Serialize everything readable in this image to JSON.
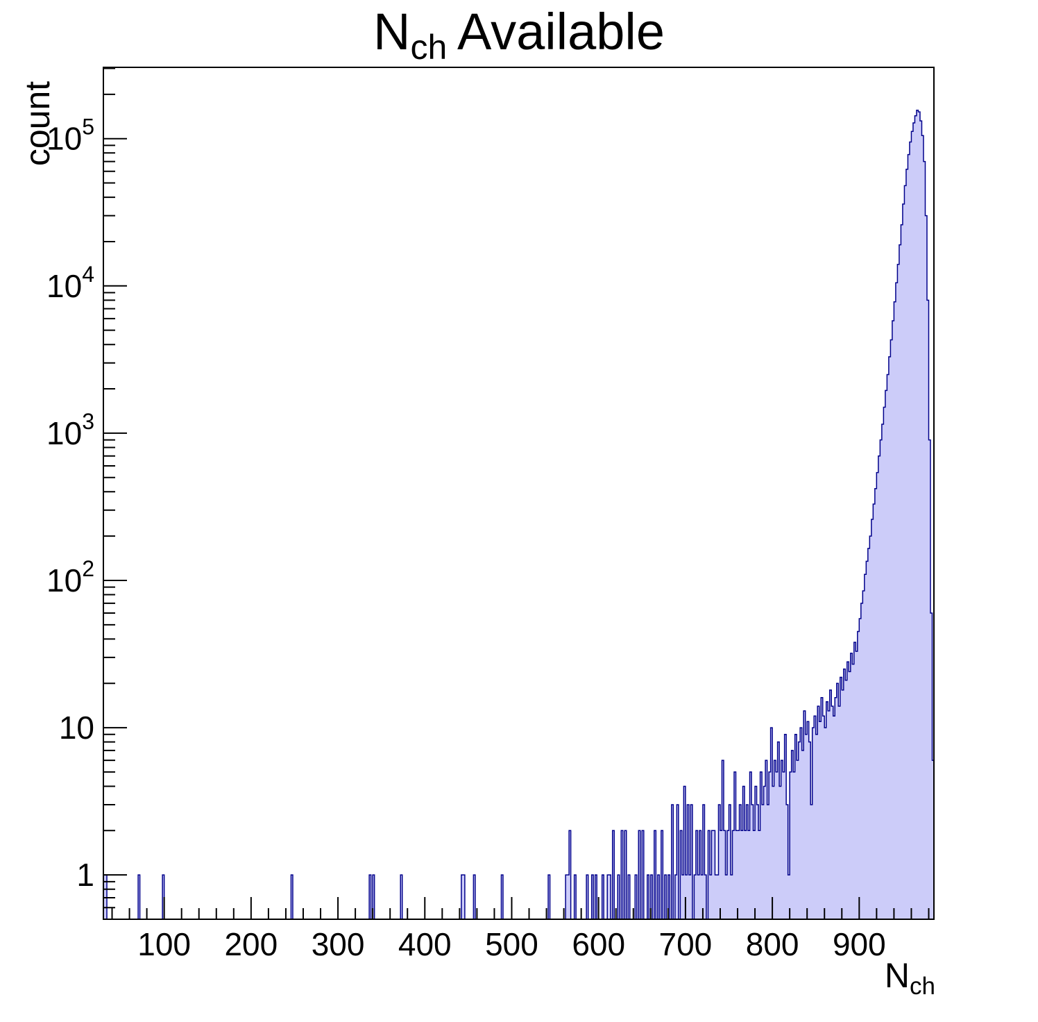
{
  "title": {
    "main": "N",
    "sub": "ch",
    "rest": "Available"
  },
  "y_axis": {
    "label": "count",
    "ticks": [
      {
        "text": "1",
        "sup": "",
        "value": 1
      },
      {
        "text": "10",
        "sup": "",
        "value": 10
      },
      {
        "text": "10",
        "sup": "2",
        "value": 100
      },
      {
        "text": "10",
        "sup": "3",
        "value": 1000
      },
      {
        "text": "10",
        "sup": "4",
        "value": 10000
      },
      {
        "text": "10",
        "sup": "5",
        "value": 100000
      }
    ]
  },
  "x_axis": {
    "label_main": "N",
    "label_sub": "ch",
    "tick_values": [
      100,
      200,
      300,
      400,
      500,
      600,
      700,
      800,
      900
    ]
  },
  "chart_data": {
    "type": "histogram",
    "title": "N_ch Available",
    "xlabel": "N_ch",
    "ylabel": "count",
    "x_range": [
      30,
      986
    ],
    "bin_width": 2,
    "y_scale": "log",
    "y_range": [
      0.5,
      305000
    ],
    "x_major_ticks": [
      100,
      200,
      300,
      400,
      500,
      600,
      700,
      800,
      900
    ],
    "x_minor_step": 20,
    "y_major_ticks": [
      1,
      10,
      100,
      1000,
      10000,
      100000
    ],
    "grid": false,
    "legend": false,
    "colors": {
      "fill": "#ccccf9",
      "line": "#00008b",
      "frame": "#000000"
    },
    "peak": {
      "x": 967,
      "count": 156000
    },
    "bins": [
      [
        30,
        1
      ],
      [
        32,
        1
      ],
      [
        70,
        1
      ],
      [
        98,
        1
      ],
      [
        246,
        1
      ],
      [
        336,
        1
      ],
      [
        340,
        1
      ],
      [
        372,
        1
      ],
      [
        442,
        1
      ],
      [
        444,
        1
      ],
      [
        456,
        1
      ],
      [
        488,
        1
      ],
      [
        542,
        1
      ],
      [
        562,
        1
      ],
      [
        564,
        1
      ],
      [
        566,
        2
      ],
      [
        572,
        1
      ],
      [
        586,
        1
      ],
      [
        592,
        1
      ],
      [
        596,
        1
      ],
      [
        604,
        1
      ],
      [
        610,
        1
      ],
      [
        612,
        1
      ],
      [
        616,
        2
      ],
      [
        622,
        1
      ],
      [
        626,
        2
      ],
      [
        630,
        2
      ],
      [
        634,
        1
      ],
      [
        642,
        1
      ],
      [
        646,
        2
      ],
      [
        650,
        2
      ],
      [
        656,
        1
      ],
      [
        660,
        1
      ],
      [
        664,
        2
      ],
      [
        668,
        1
      ],
      [
        672,
        2
      ],
      [
        676,
        1
      ],
      [
        680,
        1
      ],
      [
        684,
        3
      ],
      [
        688,
        1
      ],
      [
        690,
        3
      ],
      [
        694,
        2
      ],
      [
        696,
        1
      ],
      [
        698,
        4
      ],
      [
        700,
        1
      ],
      [
        702,
        3
      ],
      [
        704,
        1
      ],
      [
        706,
        3
      ],
      [
        710,
        1
      ],
      [
        712,
        2
      ],
      [
        714,
        1
      ],
      [
        716,
        2
      ],
      [
        718,
        1
      ],
      [
        720,
        3
      ],
      [
        722,
        1
      ],
      [
        726,
        2
      ],
      [
        728,
        1
      ],
      [
        730,
        2
      ],
      [
        732,
        2
      ],
      [
        734,
        1
      ],
      [
        736,
        1
      ],
      [
        738,
        3
      ],
      [
        740,
        2
      ],
      [
        742,
        6
      ],
      [
        744,
        2
      ],
      [
        746,
        1
      ],
      [
        748,
        2
      ],
      [
        750,
        3
      ],
      [
        752,
        1
      ],
      [
        754,
        2
      ],
      [
        756,
        5
      ],
      [
        758,
        2
      ],
      [
        760,
        2
      ],
      [
        762,
        3
      ],
      [
        764,
        2
      ],
      [
        766,
        4
      ],
      [
        768,
        2
      ],
      [
        770,
        3
      ],
      [
        772,
        2
      ],
      [
        774,
        5
      ],
      [
        776,
        3
      ],
      [
        778,
        2
      ],
      [
        780,
        4
      ],
      [
        782,
        3
      ],
      [
        784,
        2
      ],
      [
        786,
        5
      ],
      [
        788,
        3
      ],
      [
        790,
        4
      ],
      [
        792,
        6
      ],
      [
        794,
        3
      ],
      [
        796,
        5
      ],
      [
        798,
        10
      ],
      [
        800,
        4
      ],
      [
        802,
        6
      ],
      [
        804,
        5
      ],
      [
        806,
        8
      ],
      [
        808,
        4
      ],
      [
        810,
        6
      ],
      [
        812,
        5
      ],
      [
        814,
        9
      ],
      [
        816,
        3
      ],
      [
        818,
        1
      ],
      [
        820,
        5
      ],
      [
        822,
        7
      ],
      [
        824,
        5
      ],
      [
        826,
        9
      ],
      [
        828,
        6
      ],
      [
        830,
        8
      ],
      [
        832,
        10
      ],
      [
        834,
        7
      ],
      [
        836,
        13
      ],
      [
        838,
        9
      ],
      [
        840,
        11
      ],
      [
        842,
        8
      ],
      [
        844,
        3
      ],
      [
        846,
        10
      ],
      [
        848,
        12
      ],
      [
        850,
        9
      ],
      [
        852,
        14
      ],
      [
        854,
        11
      ],
      [
        856,
        16
      ],
      [
        858,
        12
      ],
      [
        860,
        10
      ],
      [
        862,
        15
      ],
      [
        864,
        13
      ],
      [
        866,
        18
      ],
      [
        868,
        14
      ],
      [
        870,
        12
      ],
      [
        872,
        16
      ],
      [
        874,
        20
      ],
      [
        876,
        14
      ],
      [
        878,
        22
      ],
      [
        880,
        18
      ],
      [
        882,
        25
      ],
      [
        884,
        21
      ],
      [
        886,
        28
      ],
      [
        888,
        24
      ],
      [
        890,
        32
      ],
      [
        892,
        27
      ],
      [
        894,
        38
      ],
      [
        896,
        33
      ],
      [
        898,
        45
      ],
      [
        900,
        55
      ],
      [
        902,
        70
      ],
      [
        904,
        85
      ],
      [
        906,
        110
      ],
      [
        908,
        135
      ],
      [
        910,
        165
      ],
      [
        912,
        200
      ],
      [
        914,
        260
      ],
      [
        916,
        330
      ],
      [
        918,
        420
      ],
      [
        920,
        540
      ],
      [
        922,
        700
      ],
      [
        924,
        900
      ],
      [
        926,
        1150
      ],
      [
        928,
        1500
      ],
      [
        930,
        1950
      ],
      [
        932,
        2500
      ],
      [
        934,
        3300
      ],
      [
        936,
        4300
      ],
      [
        938,
        5800
      ],
      [
        940,
        7800
      ],
      [
        942,
        10500
      ],
      [
        944,
        14000
      ],
      [
        946,
        19000
      ],
      [
        948,
        26000
      ],
      [
        950,
        36000
      ],
      [
        952,
        48000
      ],
      [
        954,
        62000
      ],
      [
        956,
        78000
      ],
      [
        958,
        95000
      ],
      [
        960,
        112000
      ],
      [
        962,
        128000
      ],
      [
        964,
        143000
      ],
      [
        966,
        156000
      ],
      [
        968,
        152000
      ],
      [
        970,
        132000
      ],
      [
        972,
        105000
      ],
      [
        974,
        70000
      ],
      [
        976,
        30000
      ],
      [
        978,
        8000
      ],
      [
        980,
        900
      ],
      [
        982,
        60
      ],
      [
        984,
        6
      ]
    ]
  }
}
